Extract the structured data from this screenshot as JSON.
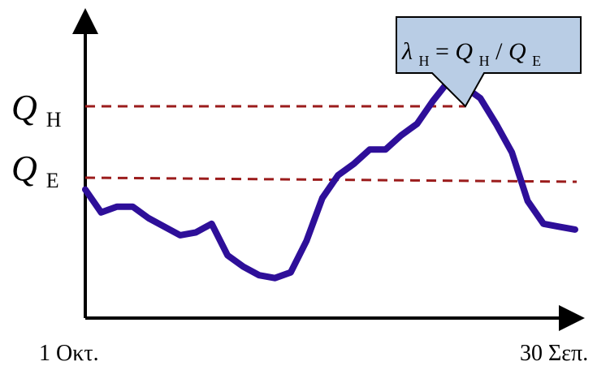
{
  "labels": {
    "q_high_main": "Q",
    "q_high_sub": "H",
    "q_eq_main": "Q",
    "q_eq_sub": "E",
    "x_start": "1 Οκτ.",
    "x_end": "30 Σεπ."
  },
  "callout": {
    "lambda": "λ",
    "lambda_sub": "H",
    "equals": " = ",
    "q1": "Q",
    "q1_sub": "H",
    "divider": " / ",
    "q2": "Q",
    "q2_sub": "E",
    "fill_color": "#b9cde5",
    "border_color": "#000000"
  },
  "colors": {
    "axis": "#000000",
    "series": "#2e0f99",
    "threshold": "#9b1c1c"
  },
  "series": {
    "values": [
      0.45,
      0.37,
      0.39,
      0.39,
      0.35,
      0.32,
      0.29,
      0.3,
      0.33,
      0.22,
      0.18,
      0.15,
      0.14,
      0.16,
      0.27,
      0.42,
      0.5,
      0.54,
      0.59,
      0.59,
      0.64,
      0.68,
      0.76,
      0.83,
      0.81,
      0.77,
      0.68,
      0.58,
      0.41,
      0.33,
      0.32,
      0.31
    ],
    "thresholds": {
      "high": 0.835,
      "equivalent": 0.455,
      "equivalent_end": 0.435
    }
  }
}
